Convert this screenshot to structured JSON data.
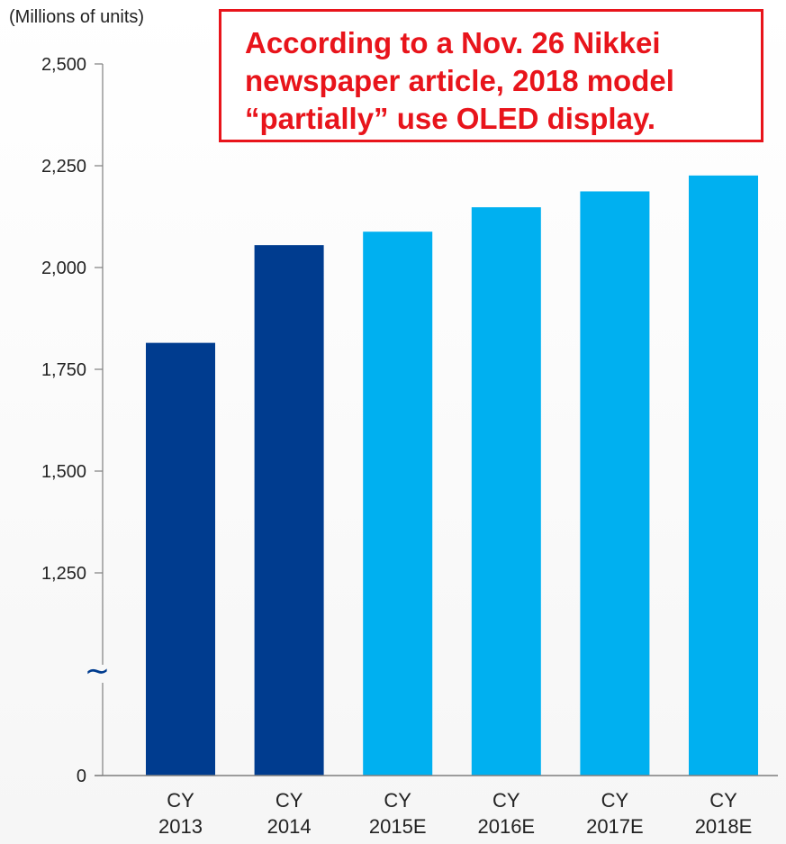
{
  "chart_data": {
    "type": "bar",
    "unit_label": "(Millions of units)",
    "categories": [
      [
        "CY",
        "2013"
      ],
      [
        "CY",
        "2014"
      ],
      [
        "CY",
        "2015E"
      ],
      [
        "CY",
        "2016E"
      ],
      [
        "CY",
        "2017E"
      ],
      [
        "CY",
        "2018E"
      ]
    ],
    "values": [
      1815,
      2055,
      2088,
      2148,
      2187,
      2226
    ],
    "actual_color": "#003c8f",
    "estimate_color": "#00b0f0",
    "estimate_flags": [
      false,
      false,
      true,
      true,
      true,
      true
    ],
    "y_ticks": [
      "0",
      "1,250",
      "1,500",
      "1,750",
      "2,000",
      "2,250",
      "2,500"
    ],
    "y_tick_values": [
      0,
      1250,
      1500,
      1750,
      2000,
      2250,
      2500
    ],
    "axis_break": true,
    "axis_break_symbol": "∼",
    "grid": false,
    "annotation": {
      "lines": [
        "According to a Nov. 26 Nikkei",
        "newspaper article, 2018 model",
        "“partially” use OLED display."
      ],
      "color": "#e8141b"
    }
  }
}
